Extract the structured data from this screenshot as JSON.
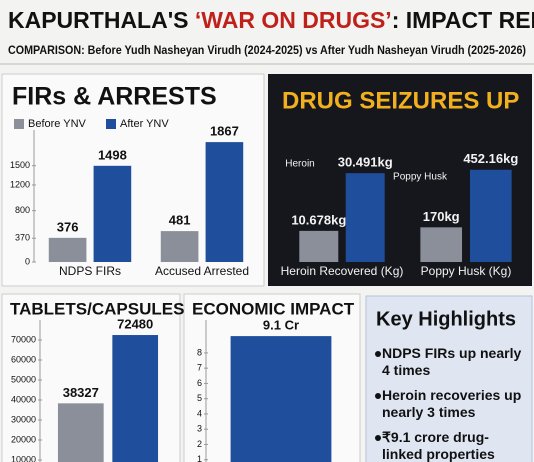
{
  "header": {
    "title_parts": [
      "KAPURTHALA'S ",
      "‘WAR ON DRUGS’",
      ": IMPACT REPORT"
    ],
    "subtitle": "COMPARISON: Before Yudh Nasheyan Virudh (2024-2025) vs After Yudh Nasheyan Virudh (2025-2026)"
  },
  "chart_data": [
    {
      "type": "bar",
      "title": "FIRs & ARRESTS",
      "categories": [
        "NDPS FIRs",
        "Accused Arrested"
      ],
      "series": [
        {
          "name": "Before YNV",
          "color": "#8a8f99",
          "values": [
            376,
            481
          ]
        },
        {
          "name": "After YNV",
          "color": "#1f4e9c",
          "values": [
            1498,
            1867
          ]
        }
      ],
      "ylim": [
        0,
        1900
      ],
      "yticks": [
        0,
        370,
        800,
        1200,
        1500
      ]
    },
    {
      "type": "bar",
      "title": "DRUG SEIZURES UP",
      "icon_label": "Heroin",
      "categories": [
        "Heroin Recovered (Kg)"
      ],
      "series": [
        {
          "color": "#8a8f99",
          "values": [
            10.678
          ],
          "value_labels": [
            "10.678kg"
          ]
        },
        {
          "color": "#1f4e9c",
          "values": [
            30.491
          ],
          "value_labels": [
            "30.491kg"
          ]
        }
      ],
      "ylim": [
        0,
        35
      ]
    },
    {
      "type": "bar",
      "icon_label": "Poppy Husk",
      "categories": [
        "Poppy Husk (Kg)"
      ],
      "series": [
        {
          "color": "#8a8f99",
          "values": [
            170
          ],
          "value_labels": [
            "170kg"
          ]
        },
        {
          "color": "#1f4e9c",
          "values": [
            452.16
          ],
          "value_labels": [
            "452.16kg"
          ]
        }
      ],
      "ylim": [
        0,
        500
      ]
    },
    {
      "type": "bar",
      "title": "TABLETS/CAPSULES",
      "categories": [
        null
      ],
      "series": [
        {
          "color": "#8a8f99",
          "values": [
            38327
          ]
        },
        {
          "color": "#1f4e9c",
          "values": [
            72480
          ]
        }
      ],
      "ylim": [
        0,
        75000
      ],
      "yticks": [
        10000,
        20000,
        30000,
        40000,
        50000,
        60000,
        70000
      ]
    },
    {
      "type": "bar",
      "title": "ECONOMIC IMPACT",
      "categories": [
        null
      ],
      "series": [
        {
          "color": "#1f4e9c",
          "values": [
            9.1
          ],
          "value_labels": [
            "9.1 Cr"
          ]
        }
      ],
      "ylim": [
        0,
        9.5
      ],
      "yticks": [
        1,
        2,
        3,
        4,
        5,
        6,
        7,
        8
      ]
    }
  ],
  "highlights": {
    "title": "Key Highlights",
    "items": [
      "NDPS FIRs up nearly 4 times",
      "Heroin recoveries up nearly 3 times",
      "₹9.1 crore drug-linked properties"
    ]
  }
}
